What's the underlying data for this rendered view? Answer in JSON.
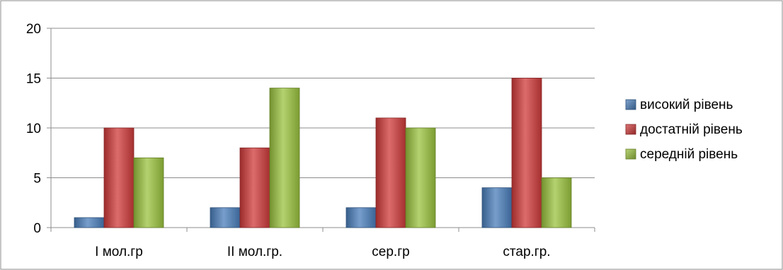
{
  "chart_data": {
    "type": "bar",
    "categories": [
      "І мол.гр",
      "ІІ мол.гр.",
      "сер.гр",
      "стар.гр."
    ],
    "series": [
      {
        "name": "високий рівень",
        "values": [
          1,
          2,
          2,
          4
        ],
        "color": "#4a7ebb"
      },
      {
        "name": "достатній рівень",
        "values": [
          10,
          8,
          11,
          15
        ],
        "color": "#d03b3b"
      },
      {
        "name": "середній рівень",
        "values": [
          7,
          14,
          10,
          5
        ],
        "color": "#9bc33f"
      }
    ],
    "ylim": [
      0,
      20
    ],
    "yticks": [
      0,
      5,
      10,
      15,
      20
    ],
    "grid": true,
    "legend": "right"
  }
}
